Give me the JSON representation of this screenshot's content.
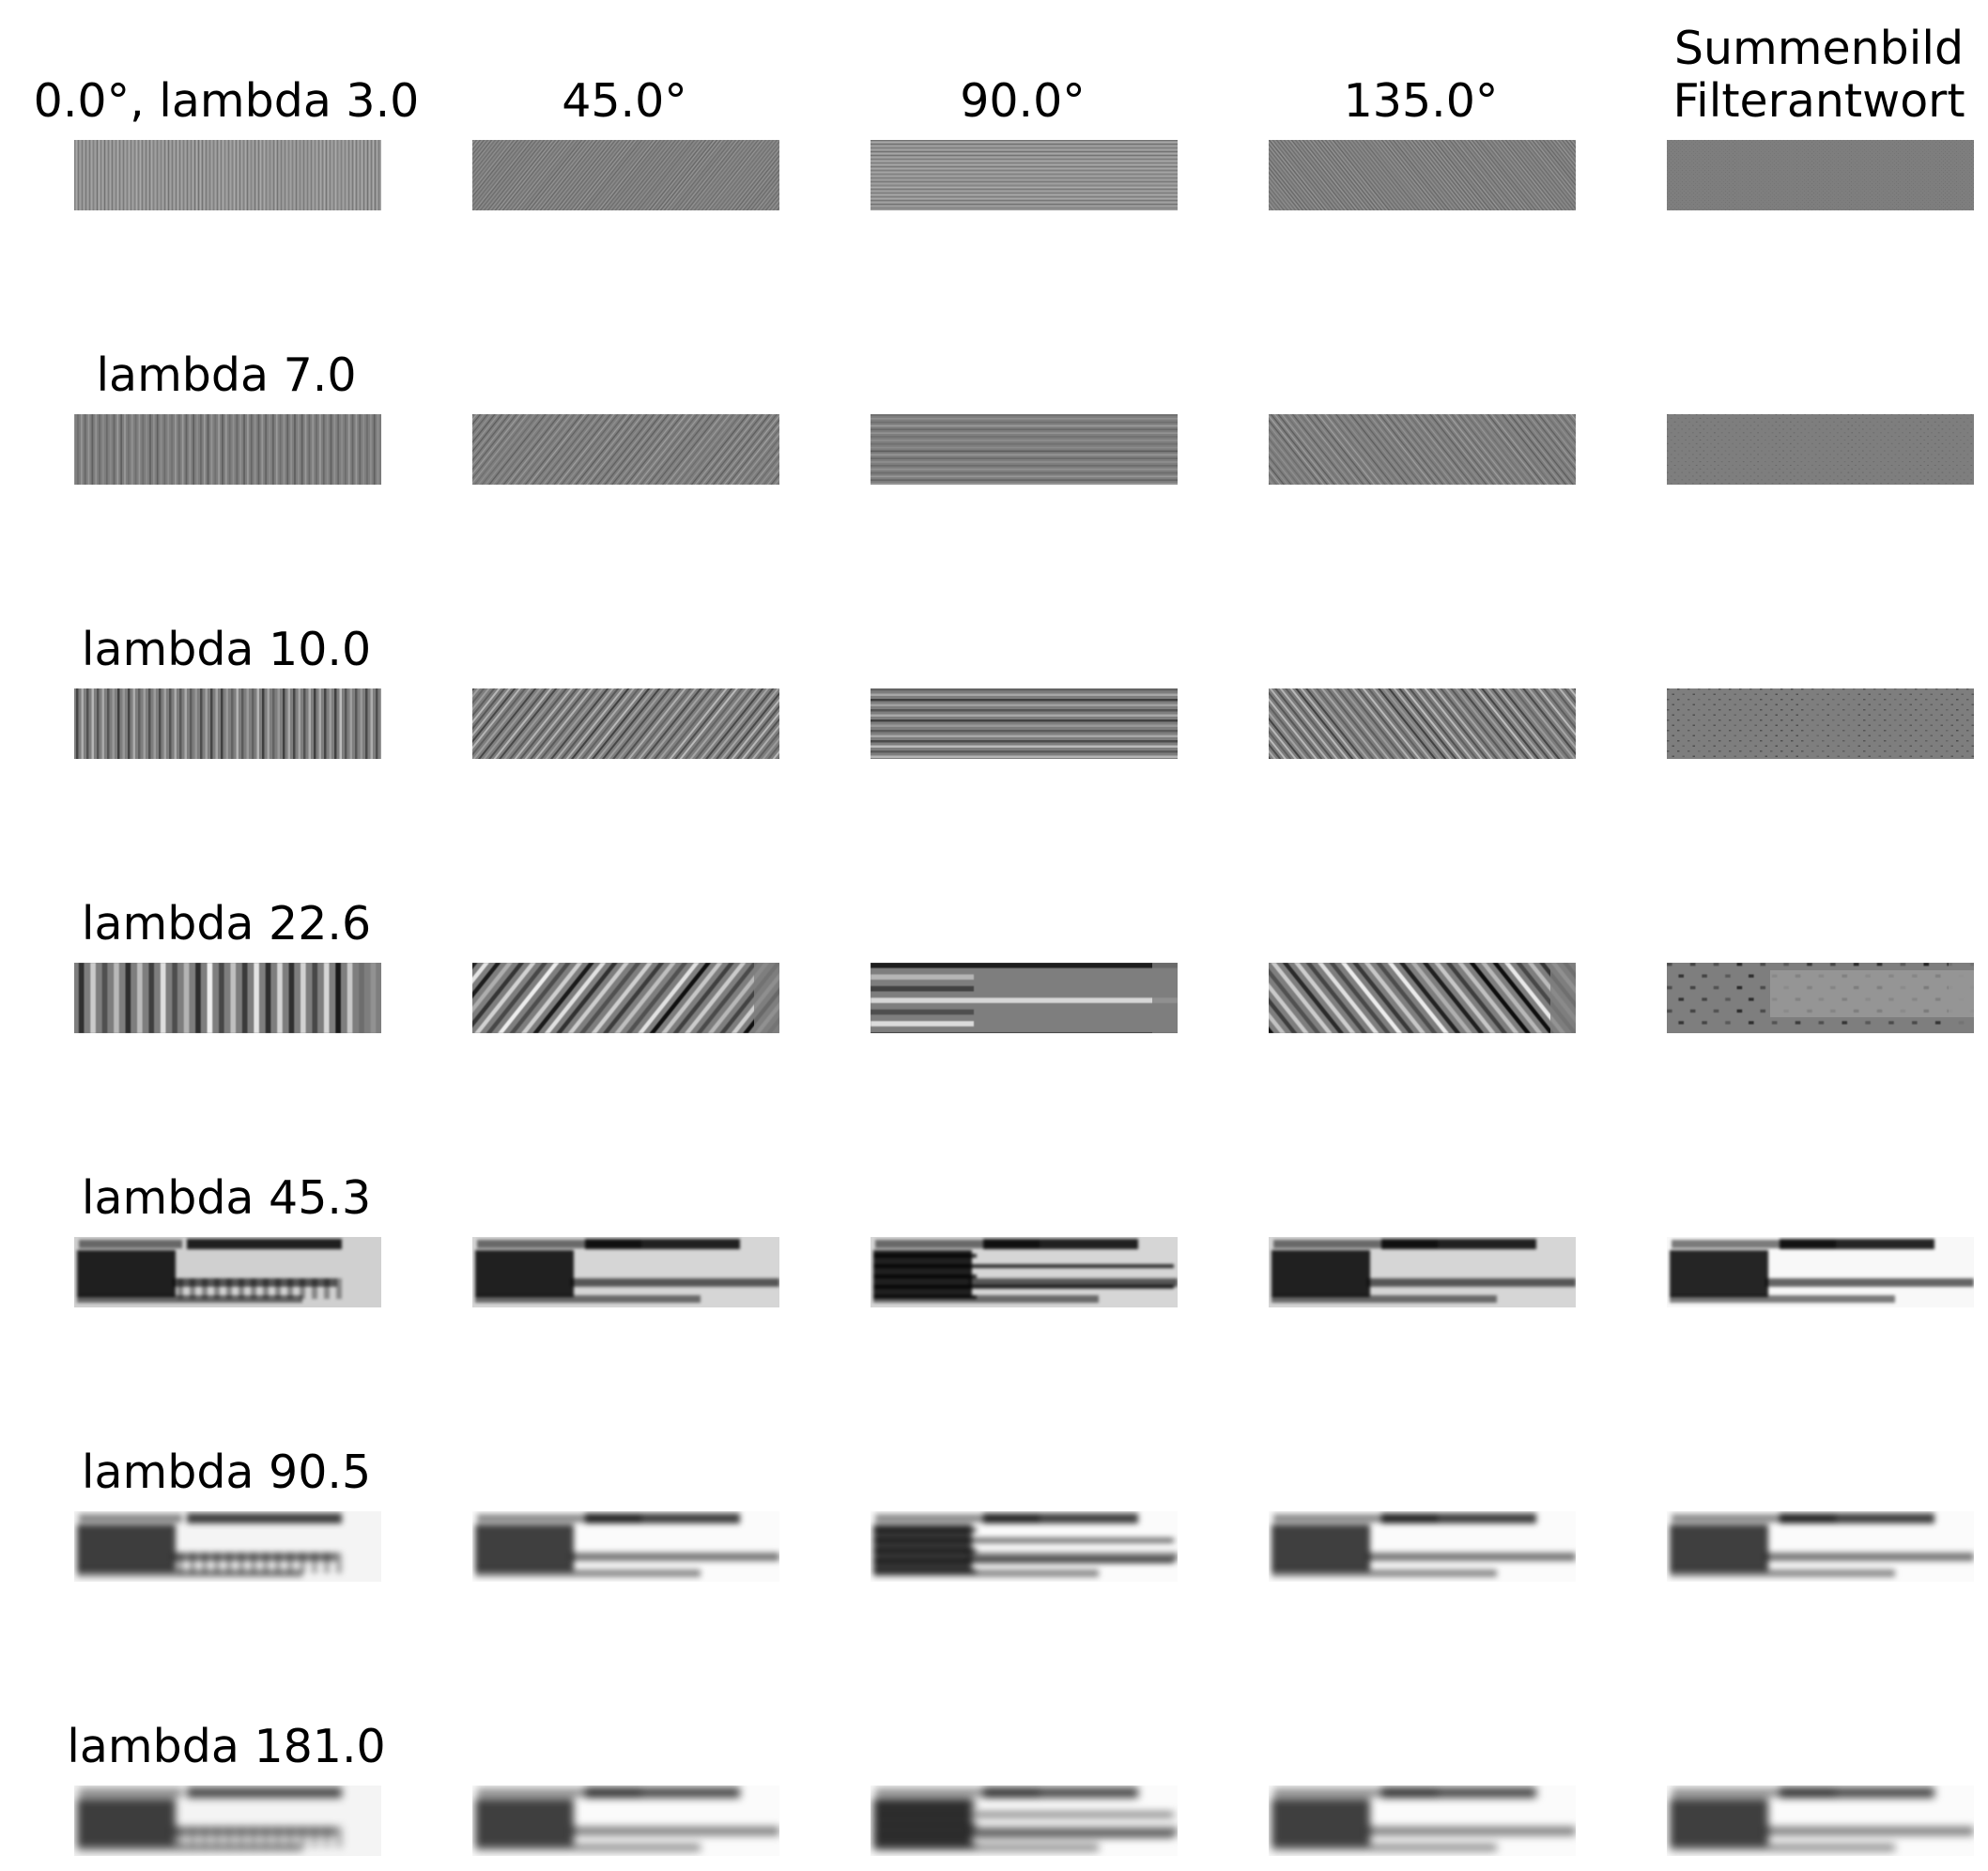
{
  "figure": {
    "column_headers": [
      "0.0°, lambda 3.0",
      "45.0°",
      "90.0°",
      "135.0°",
      "Summenbild\nFilterantwort"
    ],
    "row_labels": [
      "lambda 7.0",
      "lambda 10.0",
      "lambda 22.6",
      "lambda 45.3",
      "lambda 90.5",
      "lambda 181.0"
    ],
    "orientations_deg": [
      0,
      45,
      90,
      135
    ],
    "lambdas": [
      3.0,
      7.0,
      10.0,
      22.6,
      45.3,
      90.5,
      181.0
    ],
    "last_column_meaning": "Summenbild Filterantwort",
    "colors": {
      "background": "#ffffff",
      "text": "#000000",
      "mid_gray": "#808080"
    }
  }
}
